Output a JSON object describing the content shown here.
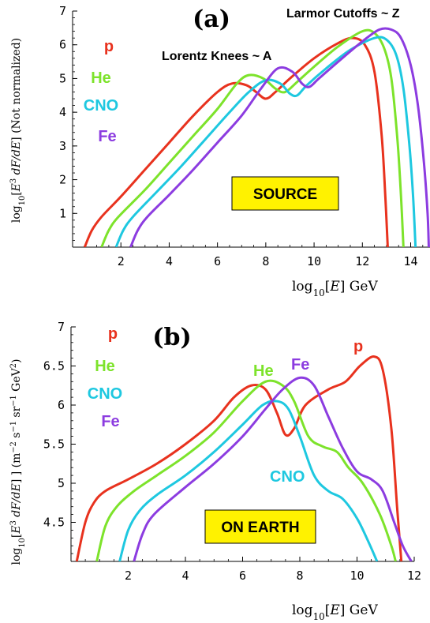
{
  "chart_data": [
    {
      "type": "line",
      "panel_label": "(a)",
      "annotation_top": "Larmor Cutoffs ~ Z",
      "annotation_mid": "Lorentz Knees ~ A",
      "box_label": "SOURCE",
      "xlabel": "log10[E] GeV",
      "ylabel": "log10[E^3 dF/dE] (Not normalized)",
      "xlim": [
        0,
        14.8
      ],
      "ylim": [
        0,
        7
      ],
      "x_ticks": [
        2,
        4,
        6,
        8,
        10,
        12,
        14
      ],
      "y_ticks": [
        1,
        2,
        3,
        4,
        5,
        6,
        7
      ],
      "legend": [
        {
          "label": "p",
          "color": "#e8321e"
        },
        {
          "label": "He",
          "color": "#7de32b"
        },
        {
          "label": "CNO",
          "color": "#1ec8e0"
        },
        {
          "label": "Fe",
          "color": "#8c3ce0"
        }
      ],
      "series": [
        {
          "name": "p",
          "color": "#e8321e",
          "points": [
            [
              0.5,
              0
            ],
            [
              0.8,
              0.5
            ],
            [
              1.2,
              0.9
            ],
            [
              2,
              1.5
            ],
            [
              3,
              2.3
            ],
            [
              4,
              3.1
            ],
            [
              5,
              3.9
            ],
            [
              6,
              4.6
            ],
            [
              6.6,
              4.85
            ],
            [
              7.2,
              4.8
            ],
            [
              7.6,
              4.6
            ],
            [
              8.0,
              4.4
            ],
            [
              8.4,
              4.6
            ],
            [
              9,
              5.0
            ],
            [
              10,
              5.6
            ],
            [
              11,
              6.05
            ],
            [
              11.6,
              6.2
            ],
            [
              12.1,
              6.0
            ],
            [
              12.5,
              5.2
            ],
            [
              12.8,
              3.3
            ],
            [
              12.95,
              1.5
            ],
            [
              13.05,
              0
            ]
          ]
        },
        {
          "name": "He",
          "color": "#7de32b",
          "points": [
            [
              1.2,
              0
            ],
            [
              1.5,
              0.5
            ],
            [
              1.9,
              0.9
            ],
            [
              3,
              1.7
            ],
            [
              4,
              2.5
            ],
            [
              5,
              3.3
            ],
            [
              6,
              4.1
            ],
            [
              6.8,
              4.85
            ],
            [
              7.3,
              5.1
            ],
            [
              7.9,
              5.0
            ],
            [
              8.4,
              4.7
            ],
            [
              8.8,
              4.6
            ],
            [
              9.3,
              4.9
            ],
            [
              10,
              5.35
            ],
            [
              11,
              5.95
            ],
            [
              12,
              6.4
            ],
            [
              12.5,
              6.35
            ],
            [
              12.9,
              5.9
            ],
            [
              13.2,
              5.0
            ],
            [
              13.45,
              3.2
            ],
            [
              13.6,
              1.5
            ],
            [
              13.7,
              0
            ]
          ]
        },
        {
          "name": "CNO",
          "color": "#1ec8e0",
          "points": [
            [
              1.8,
              0
            ],
            [
              2.1,
              0.5
            ],
            [
              2.5,
              0.9
            ],
            [
              3.5,
              1.65
            ],
            [
              4.5,
              2.4
            ],
            [
              5.5,
              3.2
            ],
            [
              6.5,
              4.0
            ],
            [
              7.3,
              4.6
            ],
            [
              8,
              4.95
            ],
            [
              8.6,
              4.85
            ],
            [
              9.0,
              4.55
            ],
            [
              9.3,
              4.5
            ],
            [
              9.7,
              4.8
            ],
            [
              10.5,
              5.3
            ],
            [
              11.5,
              5.85
            ],
            [
              12.5,
              6.2
            ],
            [
              13.0,
              6.15
            ],
            [
              13.4,
              5.7
            ],
            [
              13.7,
              4.7
            ],
            [
              13.95,
              3.0
            ],
            [
              14.1,
              1.5
            ],
            [
              14.2,
              0
            ]
          ]
        },
        {
          "name": "Fe",
          "color": "#8c3ce0",
          "points": [
            [
              2.4,
              0
            ],
            [
              2.7,
              0.5
            ],
            [
              3.1,
              0.9
            ],
            [
              4,
              1.55
            ],
            [
              5,
              2.3
            ],
            [
              6,
              3.1
            ],
            [
              7,
              3.9
            ],
            [
              7.8,
              4.7
            ],
            [
              8.5,
              5.3
            ],
            [
              9.1,
              5.2
            ],
            [
              9.5,
              4.85
            ],
            [
              9.8,
              4.75
            ],
            [
              10.2,
              5.0
            ],
            [
              11,
              5.5
            ],
            [
              12,
              6.1
            ],
            [
              12.7,
              6.45
            ],
            [
              13.2,
              6.45
            ],
            [
              13.6,
              6.2
            ],
            [
              14.0,
              5.4
            ],
            [
              14.3,
              4.2
            ],
            [
              14.55,
              2.5
            ],
            [
              14.7,
              1.0
            ],
            [
              14.75,
              0
            ]
          ]
        }
      ]
    },
    {
      "type": "line",
      "panel_label": "(b)",
      "box_label": "ON EARTH",
      "xlabel": "log10[E] GeV",
      "ylabel": "log10[E^3 dF/dE] ] (m^-2 s^-1 sr^-1 GeV^2)",
      "xlim": [
        0,
        12
      ],
      "ylim": [
        4,
        7
      ],
      "x_ticks": [
        2,
        4,
        6,
        8,
        10,
        12
      ],
      "y_ticks": [
        4.5,
        5,
        5.5,
        6,
        6.5,
        7
      ],
      "y_tick_labels": [
        "4.5",
        "5",
        "5.5",
        "6",
        "6.5",
        "7"
      ],
      "legend": [
        {
          "label": "p",
          "color": "#e8321e"
        },
        {
          "label": "He",
          "color": "#7de32b"
        },
        {
          "label": "CNO",
          "color": "#1ec8e0"
        },
        {
          "label": "Fe",
          "color": "#8c3ce0"
        }
      ],
      "inline_labels": [
        {
          "label": "He",
          "color": "#7de32b"
        },
        {
          "label": "Fe",
          "color": "#8c3ce0"
        },
        {
          "label": "p",
          "color": "#e8321e"
        },
        {
          "label": "CNO",
          "color": "#1ec8e0"
        }
      ],
      "series": [
        {
          "name": "p",
          "color": "#e8321e",
          "points": [
            [
              0.2,
              4.0
            ],
            [
              0.5,
              4.5
            ],
            [
              0.8,
              4.75
            ],
            [
              1.2,
              4.9
            ],
            [
              2,
              5.05
            ],
            [
              3,
              5.25
            ],
            [
              4,
              5.5
            ],
            [
              5,
              5.8
            ],
            [
              5.7,
              6.1
            ],
            [
              6.3,
              6.25
            ],
            [
              6.8,
              6.2
            ],
            [
              7.2,
              5.9
            ],
            [
              7.5,
              5.62
            ],
            [
              7.8,
              5.7
            ],
            [
              8.2,
              6.0
            ],
            [
              9,
              6.2
            ],
            [
              9.6,
              6.3
            ],
            [
              10.1,
              6.5
            ],
            [
              10.6,
              6.62
            ],
            [
              10.9,
              6.45
            ],
            [
              11.2,
              5.7
            ],
            [
              11.4,
              4.7
            ],
            [
              11.55,
              4.0
            ]
          ]
        },
        {
          "name": "He",
          "color": "#7de32b",
          "points": [
            [
              0.9,
              4.0
            ],
            [
              1.2,
              4.45
            ],
            [
              1.6,
              4.7
            ],
            [
              2.2,
              4.9
            ],
            [
              3,
              5.1
            ],
            [
              4,
              5.35
            ],
            [
              5,
              5.65
            ],
            [
              6,
              6.05
            ],
            [
              6.8,
              6.3
            ],
            [
              7.4,
              6.25
            ],
            [
              7.8,
              6.05
            ],
            [
              8.3,
              5.6
            ],
            [
              8.8,
              5.47
            ],
            [
              9.3,
              5.4
            ],
            [
              9.7,
              5.2
            ],
            [
              10.2,
              5.0
            ],
            [
              10.8,
              4.6
            ],
            [
              11.2,
              4.2
            ],
            [
              11.35,
              4.0
            ]
          ]
        },
        {
          "name": "CNO",
          "color": "#1ec8e0",
          "points": [
            [
              1.7,
              4.0
            ],
            [
              2.0,
              4.4
            ],
            [
              2.4,
              4.65
            ],
            [
              3,
              4.85
            ],
            [
              4,
              5.1
            ],
            [
              5,
              5.4
            ],
            [
              6,
              5.75
            ],
            [
              6.7,
              6.0
            ],
            [
              7.2,
              6.05
            ],
            [
              7.6,
              5.95
            ],
            [
              8.0,
              5.6
            ],
            [
              8.5,
              5.1
            ],
            [
              9.0,
              4.9
            ],
            [
              9.5,
              4.8
            ],
            [
              10.0,
              4.55
            ],
            [
              10.4,
              4.25
            ],
            [
              10.7,
              4.0
            ]
          ]
        },
        {
          "name": "Fe",
          "color": "#8c3ce0",
          "points": [
            [
              2.2,
              4.0
            ],
            [
              2.5,
              4.35
            ],
            [
              2.9,
              4.6
            ],
            [
              4,
              4.95
            ],
            [
              5,
              5.25
            ],
            [
              6,
              5.6
            ],
            [
              6.8,
              5.95
            ],
            [
              7.4,
              6.2
            ],
            [
              8.0,
              6.35
            ],
            [
              8.5,
              6.25
            ],
            [
              9.0,
              5.85
            ],
            [
              9.5,
              5.45
            ],
            [
              10.0,
              5.15
            ],
            [
              10.5,
              5.05
            ],
            [
              10.9,
              4.9
            ],
            [
              11.3,
              4.5
            ],
            [
              11.6,
              4.2
            ],
            [
              11.9,
              4.0
            ]
          ]
        }
      ]
    }
  ]
}
